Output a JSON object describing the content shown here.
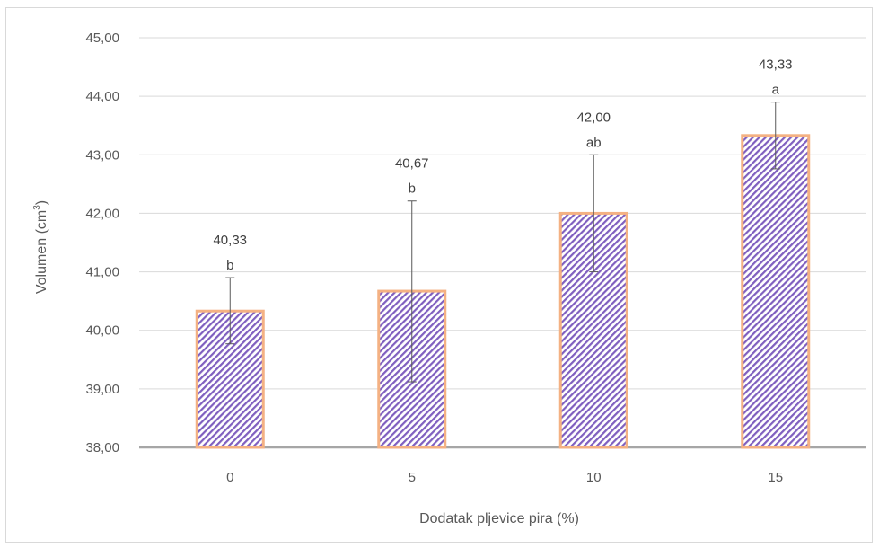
{
  "chart_data": {
    "type": "bar",
    "xlabel": "Dodatak pljevice pira (%)",
    "ylabel_main": "Volumen (cm",
    "ylabel_sup": "3",
    "ylabel_end": ")",
    "ylim": [
      38,
      45
    ],
    "yticks": [
      38,
      39,
      40,
      41,
      42,
      43,
      44,
      45
    ],
    "ytick_labels": [
      "38,00",
      "39,00",
      "40,00",
      "41,00",
      "42,00",
      "43,00",
      "44,00",
      "45,00"
    ],
    "categories": [
      "0",
      "5",
      "10",
      "15"
    ],
    "values": [
      40.33,
      40.67,
      42.0,
      43.33
    ],
    "value_labels": [
      "40,33",
      "40,67",
      "42,00",
      "43,33"
    ],
    "error_low": [
      39.77,
      39.12,
      41.0,
      42.76
    ],
    "error_high": [
      40.9,
      42.21,
      43.0,
      43.9
    ],
    "significance_letters": [
      "b",
      "b",
      "ab",
      "a"
    ],
    "grid": true,
    "colors": {
      "bar_border": "#f4b183",
      "hatch_primary": "#7f5fbf",
      "hatch_background": "#ffffff",
      "gridline": "#d9d9d9",
      "axis_line": "#a6a6a6",
      "error_bar": "#595959"
    }
  }
}
